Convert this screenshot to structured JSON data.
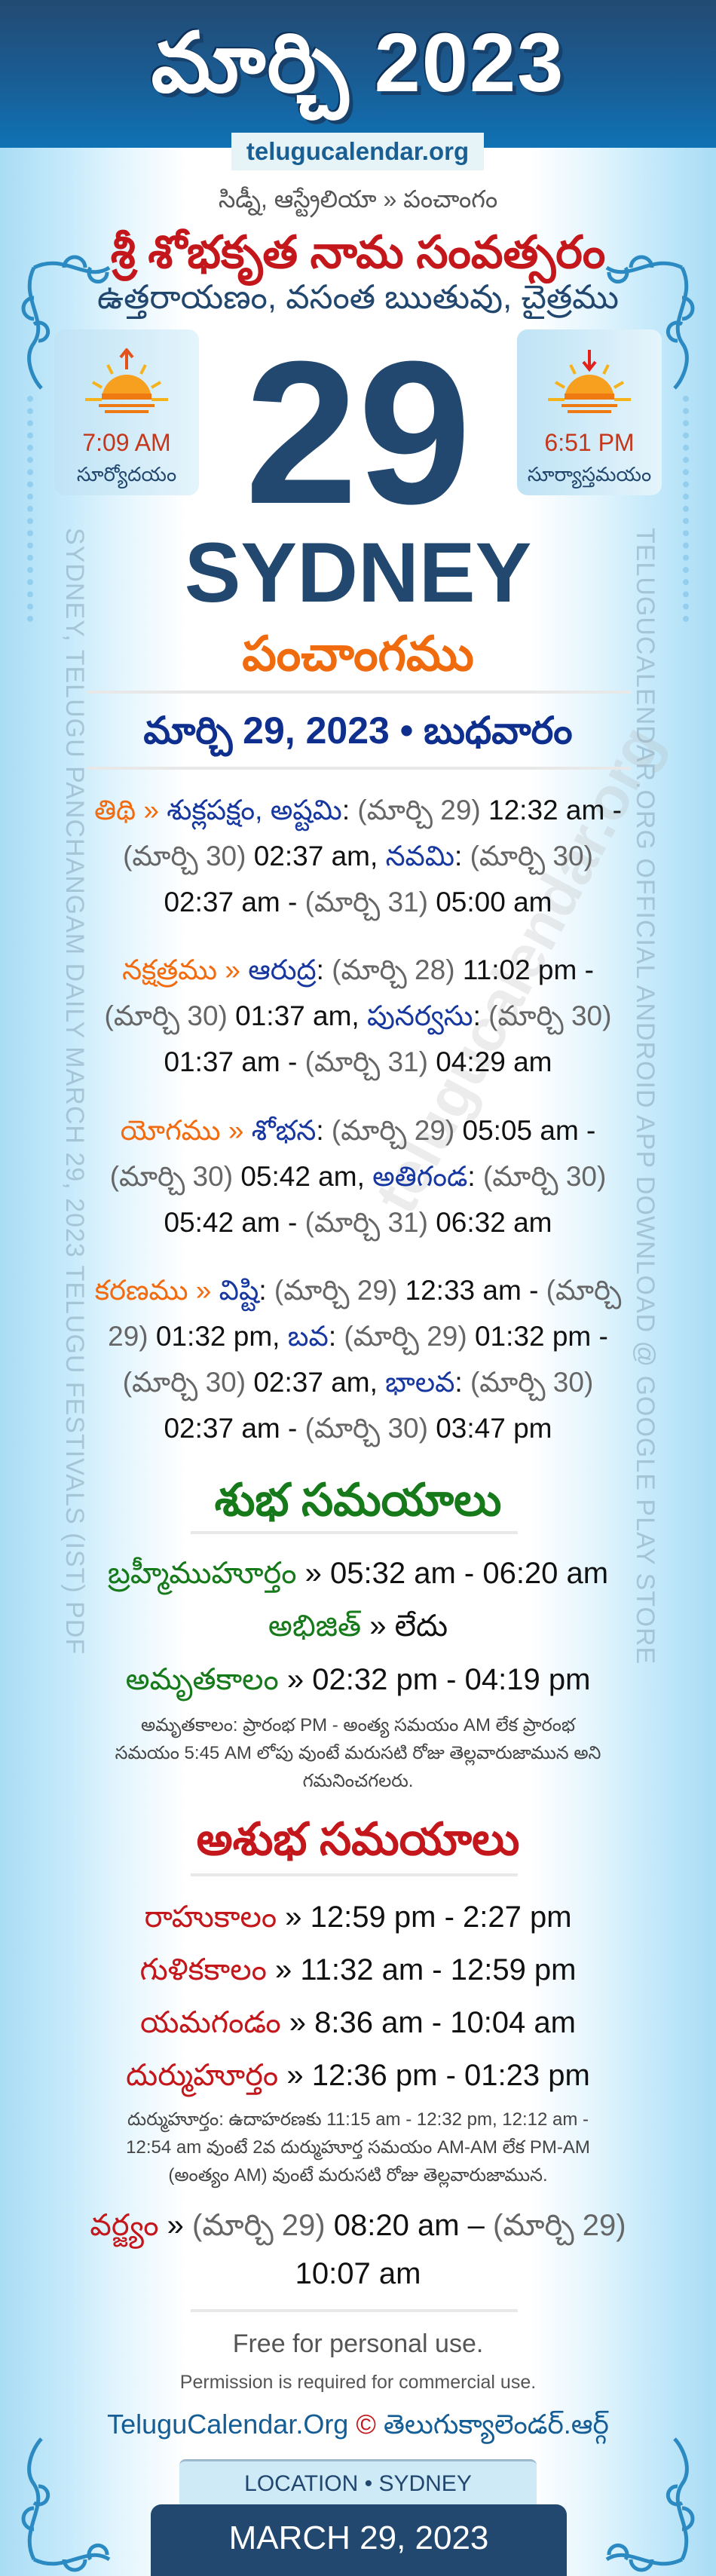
{
  "header": {
    "title": "మార్చి 2023",
    "site": "telugucalendar.org"
  },
  "intro": {
    "location": "సిడ్నీ, ఆస్ట్రేలియా » పంచాంగం",
    "samvatsaram": "శ్రీ శోభకృత నామ సంవత్సరం",
    "ayana": "ఉత్తరాయణం, వసంత ఋతువు, చైత్రము"
  },
  "sunrise": {
    "time": "7:09 AM",
    "label": "సూర్యోదయం",
    "icon": "sunrise-icon"
  },
  "sunset": {
    "time": "6:51 PM",
    "label": "సూర్యాస్తమయం",
    "icon": "sunset-icon"
  },
  "day": "29",
  "city": "SYDNEY",
  "panchangam_title": "పంచాంగము",
  "date_line": "మార్చి 29, 2023 • బుధవారం",
  "side": {
    "left": "SYDNEY, TELUGU PANCHANGAM DAILY MARCH 29, 2023 TELUGU FESTIVALS (IST) PDF",
    "right": "TELUGUCALENDAR.ORG OFFICIAL ANDROID APP DOWNLOAD @ GOOGLE PLAY STORE",
    "watermark": "telugucalendar.org"
  },
  "entries": [
    {
      "segments": [
        [
          "తిథి » ",
          "label"
        ],
        [
          "శుక్లపక్షం, అష్టమి",
          "name"
        ],
        [
          ": ",
          "time"
        ],
        [
          "(మార్చి 29) ",
          "date"
        ],
        [
          "12:32 am - ",
          "time"
        ],
        [
          "(మార్చి 30) ",
          "date"
        ],
        [
          "02:37 am, ",
          "time"
        ],
        [
          "నవమి",
          "name"
        ],
        [
          ": ",
          "time"
        ],
        [
          "(మార్చి 30) ",
          "date"
        ],
        [
          "02:37 am - ",
          "time"
        ],
        [
          "(మార్చి 31) ",
          "date"
        ],
        [
          "05:00 am",
          "time"
        ]
      ]
    },
    {
      "segments": [
        [
          "నక్షత్రము » ",
          "label"
        ],
        [
          "ఆరుద్ర",
          "name"
        ],
        [
          ": ",
          "time"
        ],
        [
          "(మార్చి 28) ",
          "date"
        ],
        [
          "11:02 pm - ",
          "time"
        ],
        [
          "(మార్చి 30) ",
          "date"
        ],
        [
          "01:37 am, ",
          "time"
        ],
        [
          "పునర్వసు",
          "name"
        ],
        [
          ": ",
          "time"
        ],
        [
          "(మార్చి 30) ",
          "date"
        ],
        [
          "01:37 am - ",
          "time"
        ],
        [
          "(మార్చి 31) ",
          "date"
        ],
        [
          "04:29 am",
          "time"
        ]
      ]
    },
    {
      "segments": [
        [
          "యోగము » ",
          "label"
        ],
        [
          "శోభన",
          "name"
        ],
        [
          ": ",
          "time"
        ],
        [
          "(మార్చి 29) ",
          "date"
        ],
        [
          "05:05 am - ",
          "time"
        ],
        [
          "(మార్చి 30) ",
          "date"
        ],
        [
          "05:42 am, ",
          "time"
        ],
        [
          "అతిగండ",
          "name"
        ],
        [
          ": ",
          "time"
        ],
        [
          "(మార్చి 30) ",
          "date"
        ],
        [
          "05:42 am - ",
          "time"
        ],
        [
          "(మార్చి 31) ",
          "date"
        ],
        [
          "06:32 am",
          "time"
        ]
      ]
    },
    {
      "segments": [
        [
          "కరణము » ",
          "label"
        ],
        [
          "విష్టి",
          "name"
        ],
        [
          ": ",
          "time"
        ],
        [
          "(మార్చి 29) ",
          "date"
        ],
        [
          "12:33 am - ",
          "time"
        ],
        [
          "(మార్చి 29) ",
          "date"
        ],
        [
          "01:32 pm, ",
          "time"
        ],
        [
          "బవ",
          "name"
        ],
        [
          ": ",
          "time"
        ],
        [
          "(మార్చి 29) ",
          "date"
        ],
        [
          "01:32 pm - ",
          "time"
        ],
        [
          "(మార్చి 30) ",
          "date"
        ],
        [
          "02:37 am, ",
          "time"
        ],
        [
          "భాలవ",
          "name"
        ],
        [
          ": ",
          "time"
        ],
        [
          "(మార్చి 30) ",
          "date"
        ],
        [
          "02:37 am - ",
          "time"
        ],
        [
          "(మార్చి 30) ",
          "date"
        ],
        [
          "03:47 pm",
          "time"
        ]
      ]
    }
  ],
  "shubha": {
    "title": "శుభ సమయాలు",
    "rows": [
      {
        "label": "బ్రహ్మీముహూర్తం",
        "value": "05:32 am - 06:20 am"
      },
      {
        "label": "అభిజిత్",
        "value": "లేదు"
      },
      {
        "label": "అమృతకాలం",
        "value": "02:32 pm - 04:19 pm"
      }
    ],
    "note": "అమృతకాలం: ప్రారంభ PM - అంత్య సమయం AM లేక ప్రారంభ సమయం 5:45 AM లోపు వుంటే మరుసటి రోజు తెల్లవారుజామున అని గమనించగలరు."
  },
  "ashubha": {
    "title": "అశుభ సమయాలు",
    "rows": [
      {
        "label": "రాహుకాలం",
        "value": "12:59 pm - 2:27 pm"
      },
      {
        "label": "గుళికకాలం",
        "value": "11:32 am - 12:59 pm"
      },
      {
        "label": "యమగండం",
        "value": "8:36 am - 10:04 am"
      },
      {
        "label": "దుర్ముహూర్తం",
        "value": "12:36 pm - 01:23 pm"
      }
    ],
    "note": "దుర్ముహూర్తం: ఉదాహరణకు 11:15 am - 12:32 pm, 12:12 am - 12:54 am వుంటే 2వ దుర్ముహూర్త సమయం AM-AM లేక PM-AM (అంత్యం AM) వుంటే మరుసటి రోజు తెల్లవారుజామున.",
    "varjyam": {
      "label": "వర్జ్యం",
      "start_date": "(మార్చి 29)",
      "start_time": "08:20 am –",
      "end_date": "(మార్చి 29)",
      "end_time": "10:07 am"
    }
  },
  "footer": {
    "free": "Free for personal use.",
    "permission": "Permission is required for commercial use.",
    "brand": "TeluguCalendar.Org",
    "copyright": "©",
    "brand_te": "తెలుగుక్యాలెండర్.ఆర్గ్",
    "location": "LOCATION • SYDNEY",
    "date": "MARCH 29, 2023"
  },
  "colors": {
    "header": "#1a5b92",
    "navy": "#22486f",
    "orange": "#f26b0f",
    "blue": "#1636a0",
    "green": "#16791a",
    "red": "#c3171c"
  }
}
